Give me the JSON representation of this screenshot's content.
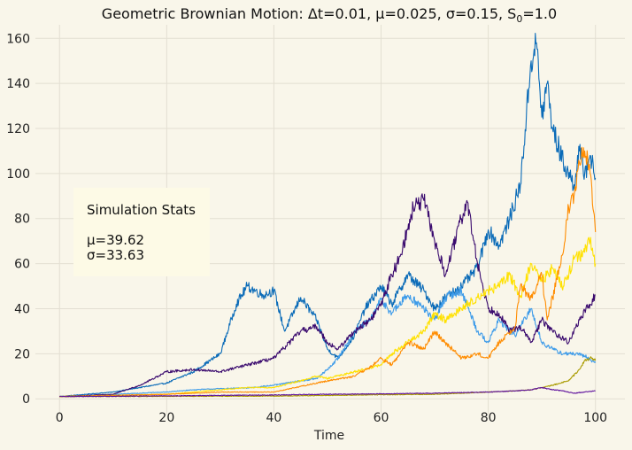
{
  "chart_data": {
    "type": "line",
    "title": "Geometric Brownian Motion: Δt=0.01, μ=0.025, σ=0.15, S",
    "title_sub": "0",
    "title_end": "=1.0",
    "xlabel": "Time",
    "ylabel": "",
    "xlim": [
      -4.5,
      105.5
    ],
    "ylim": [
      -7,
      166
    ],
    "x_ticks": [
      0,
      20,
      40,
      60,
      80,
      100
    ],
    "y_ticks": [
      0,
      20,
      40,
      60,
      80,
      100,
      120,
      140,
      160
    ],
    "grid": true,
    "series": [
      {
        "color": "#0a6bb8",
        "x": [
          0,
          5,
          10,
          15,
          20,
          25,
          30,
          33,
          35,
          38,
          40,
          42,
          45,
          48,
          50,
          52,
          55,
          57,
          60,
          62,
          65,
          68,
          70,
          72,
          75,
          78,
          80,
          82,
          84,
          86,
          88,
          89,
          90,
          91,
          92,
          94,
          96,
          97,
          98,
          99,
          100
        ],
        "y": [
          1,
          2,
          3,
          5,
          7,
          12,
          20,
          42,
          50,
          46,
          48,
          30,
          45,
          35,
          22,
          18,
          28,
          40,
          50,
          42,
          55,
          48,
          40,
          45,
          50,
          58,
          75,
          68,
          80,
          95,
          150,
          158,
          125,
          140,
          120,
          105,
          95,
          110,
          100,
          108,
          98
        ]
      },
      {
        "color": "#3d9be9",
        "x": [
          0,
          10,
          20,
          25,
          30,
          35,
          40,
          45,
          48,
          50,
          52,
          55,
          58,
          60,
          62,
          65,
          68,
          70,
          72,
          75,
          78,
          80,
          82,
          85,
          88,
          90,
          92,
          94,
          96,
          98,
          100
        ],
        "y": [
          1,
          2,
          3,
          4,
          4.5,
          4.8,
          6,
          8,
          9,
          13,
          18,
          30,
          35,
          44,
          38,
          46,
          40,
          35,
          45,
          48,
          30,
          25,
          35,
          28,
          40,
          25,
          22,
          20,
          20,
          19,
          16
        ]
      },
      {
        "color": "#3a0a6e",
        "x": [
          0,
          10,
          15,
          20,
          25,
          30,
          35,
          40,
          45,
          48,
          50,
          52,
          55,
          58,
          60,
          62,
          63,
          65,
          66,
          68,
          70,
          72,
          75,
          76,
          78,
          80,
          82,
          84,
          86,
          88,
          90,
          92,
          95,
          97,
          99,
          100
        ],
        "y": [
          1,
          2,
          6,
          12,
          13,
          12,
          15,
          18,
          30,
          32,
          25,
          22,
          30,
          35,
          42,
          55,
          60,
          75,
          85,
          88,
          70,
          55,
          80,
          88,
          60,
          40,
          38,
          30,
          32,
          25,
          35,
          30,
          25,
          35,
          42,
          46
        ]
      },
      {
        "color": "#ffe100",
        "x": [
          0,
          10,
          20,
          30,
          35,
          40,
          45,
          48,
          50,
          55,
          60,
          62,
          65,
          68,
          70,
          72,
          75,
          78,
          80,
          82,
          84,
          86,
          88,
          90,
          92,
          94,
          96,
          98,
          99,
          100
        ],
        "y": [
          1,
          1.5,
          2,
          4,
          5,
          5,
          8,
          10,
          9,
          12,
          15,
          20,
          25,
          30,
          38,
          35,
          40,
          45,
          48,
          50,
          55,
          45,
          60,
          52,
          58,
          50,
          62,
          65,
          70,
          60
        ]
      },
      {
        "color": "#ff8c00",
        "x": [
          0,
          20,
          30,
          40,
          50,
          55,
          58,
          60,
          62,
          65,
          68,
          70,
          72,
          75,
          78,
          80,
          82,
          85,
          86,
          88,
          90,
          91,
          92,
          94,
          95,
          96,
          97,
          98,
          99,
          100
        ],
        "y": [
          1,
          2,
          3,
          3,
          8,
          10,
          14,
          18,
          15,
          25,
          22,
          30,
          25,
          18,
          20,
          18,
          25,
          32,
          50,
          45,
          55,
          35,
          45,
          65,
          85,
          90,
          105,
          110,
          100,
          74
        ]
      },
      {
        "color": "#aa9b00",
        "x": [
          0,
          20,
          40,
          60,
          70,
          75,
          80,
          85,
          88,
          90,
          92,
          95,
          97,
          98,
          99,
          100
        ],
        "y": [
          1,
          1.1,
          1.2,
          1.8,
          2,
          2.5,
          3,
          3.5,
          4,
          5,
          6,
          8,
          13,
          17,
          18,
          17
        ]
      },
      {
        "color": "#5d0f9c",
        "x": [
          0,
          20,
          40,
          50,
          60,
          70,
          80,
          85,
          88,
          90,
          92,
          94,
          96,
          98,
          100
        ],
        "y": [
          1,
          1.3,
          1.7,
          2,
          2.2,
          2.5,
          3,
          3.5,
          4,
          5,
          4,
          3.5,
          2.5,
          3,
          3.5
        ]
      }
    ]
  },
  "stats": {
    "title": "Simulation Stats",
    "mu": "μ=39.62",
    "sigma": "σ=33.63"
  }
}
